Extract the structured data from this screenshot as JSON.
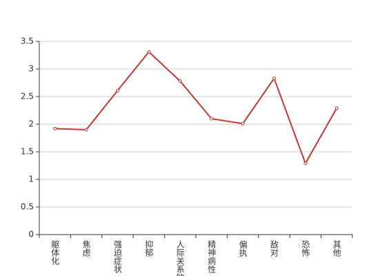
{
  "chart_data": {
    "type": "line",
    "categories": [
      "躯体化",
      "焦虑",
      "强迫症状",
      "抑郁",
      "人际关系敏感",
      "精神病性",
      "偏执",
      "敌对",
      "恐怖",
      "其他"
    ],
    "values": [
      1.92,
      1.9,
      2.61,
      3.31,
      2.78,
      2.1,
      2.01,
      2.83,
      1.29,
      2.29
    ],
    "color": "#c23531",
    "ylim": [
      0,
      3.5
    ],
    "yticks": [
      0,
      0.5,
      1,
      1.5,
      2,
      2.5,
      3,
      3.5
    ],
    "grid": true
  }
}
